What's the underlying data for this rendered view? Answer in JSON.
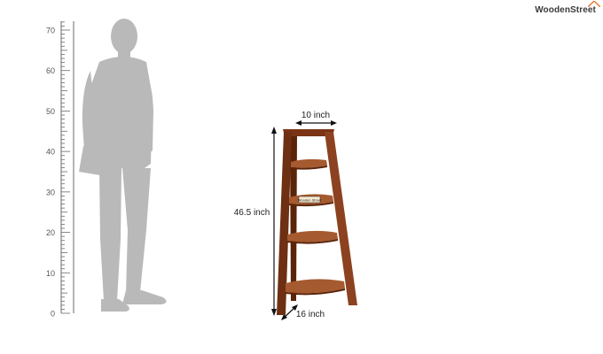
{
  "brand": {
    "name": "WoodenStreet",
    "roof_color": "#e8732a"
  },
  "ruler": {
    "ticks": [
      "0",
      "10",
      "20",
      "30",
      "40",
      "50",
      "60",
      "70"
    ]
  },
  "dimensions": {
    "width": "10 inch",
    "height": "46.5 inch",
    "depth": "16 inch"
  },
  "shelf_tag": "Wooden Street",
  "colors": {
    "silhouette": "#b9b9b9",
    "wood_dark": "#6e2f12",
    "wood_mid": "#8c4220",
    "wood_light": "#a65a2f",
    "ruler": "#6a6a6a"
  }
}
